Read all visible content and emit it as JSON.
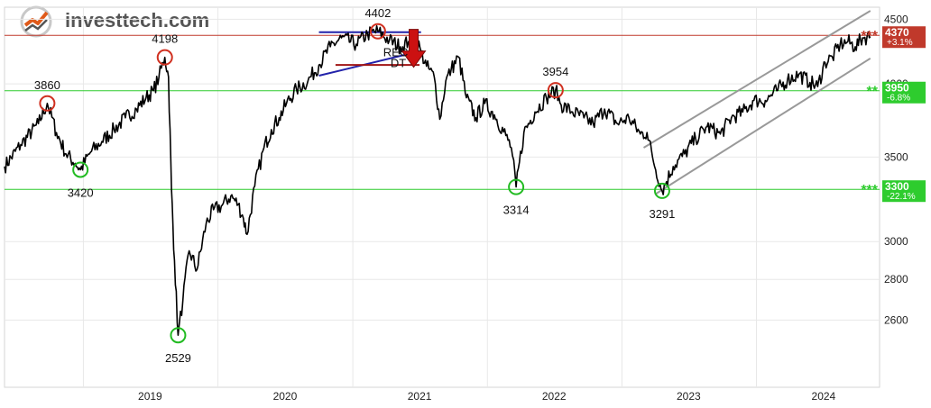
{
  "logo": {
    "brand": "investtech.com",
    "brand_prefix": "invest",
    "brand_suffix": "tech.com",
    "icon": "investtech-logo-icon"
  },
  "chart_data": {
    "type": "line",
    "title": "",
    "xlabel": "",
    "ylabel": "",
    "scale": "log",
    "ylim": [
      2300,
      4600
    ],
    "xlim": [
      "2018-06-01",
      "2024-11-30"
    ],
    "grid": true,
    "y_ticks": [
      2600,
      2800,
      3000,
      3500,
      4000,
      4500
    ],
    "x_ticks": [
      "2019",
      "2020",
      "2021",
      "2022",
      "2023",
      "2024"
    ],
    "series": [
      {
        "color": "#000000",
        "x": [
          "2018-06-01",
          "2018-07-15",
          "2018-09-01",
          "2018-09-25",
          "2018-10-20",
          "2018-11-15",
          "2018-12-10",
          "2018-12-24",
          "2019-01-20",
          "2019-02-20",
          "2019-03-25",
          "2019-04-25",
          "2019-05-25",
          "2019-06-20",
          "2019-07-10",
          "2019-07-25",
          "2019-08-10",
          "2019-08-20",
          "2019-08-28",
          "2019-09-05",
          "2019-09-15",
          "2019-09-28",
          "2019-10-15",
          "2019-11-05",
          "2019-11-30",
          "2019-12-20",
          "2020-01-10",
          "2020-02-05",
          "2020-02-25",
          "2020-03-10",
          "2020-03-20",
          "2020-04-10",
          "2020-05-05",
          "2020-05-25",
          "2020-06-15",
          "2020-07-05",
          "2020-08-01",
          "2020-09-01",
          "2020-10-01",
          "2020-11-01",
          "2020-12-01",
          "2021-01-10",
          "2021-02-10",
          "2021-03-10",
          "2021-04-10",
          "2021-05-10",
          "2021-06-01",
          "2021-06-20",
          "2021-07-05",
          "2021-07-20",
          "2021-08-10",
          "2021-08-25",
          "2021-09-10",
          "2021-09-25",
          "2021-10-15",
          "2021-11-05",
          "2021-12-01",
          "2021-12-25",
          "2022-01-20",
          "2022-02-20",
          "2022-03-07",
          "2022-03-20",
          "2022-04-10",
          "2022-05-10",
          "2022-06-10",
          "2022-07-05",
          "2022-07-20",
          "2022-08-20",
          "2022-09-20",
          "2022-10-15",
          "2022-11-15",
          "2022-12-20",
          "2023-01-20",
          "2023-02-20",
          "2023-03-10",
          "2023-03-25",
          "2023-04-20",
          "2023-05-20",
          "2023-06-20",
          "2023-07-20",
          "2023-08-20",
          "2023-09-25",
          "2023-10-25",
          "2023-11-25",
          "2023-12-25",
          "2024-01-25",
          "2024-02-25",
          "2024-03-25",
          "2024-04-25",
          "2024-05-25",
          "2024-06-15",
          "2024-07-05",
          "2024-07-25",
          "2024-08-15",
          "2024-09-05",
          "2024-09-25",
          "2024-10-15",
          "2024-11-05"
        ],
        "values": [
          3440,
          3580,
          3720,
          3860,
          3660,
          3520,
          3460,
          3420,
          3530,
          3600,
          3680,
          3760,
          3820,
          3900,
          3950,
          4050,
          4198,
          4050,
          3300,
          2900,
          2529,
          2700,
          2950,
          2850,
          3100,
          3180,
          3200,
          3260,
          3210,
          3130,
          3040,
          3320,
          3560,
          3680,
          3760,
          3860,
          3960,
          4020,
          4140,
          4280,
          4350,
          4300,
          4380,
          4402,
          4330,
          4280,
          4320,
          4360,
          4240,
          4130,
          4050,
          3750,
          4020,
          4110,
          4200,
          3900,
          3760,
          3860,
          3780,
          3640,
          3560,
          3314,
          3660,
          3800,
          3900,
          3954,
          3850,
          3800,
          3760,
          3720,
          3820,
          3720,
          3760,
          3650,
          3660,
          3500,
          3291,
          3440,
          3520,
          3620,
          3700,
          3650,
          3760,
          3800,
          3880,
          3880,
          3950,
          4030,
          4070,
          4010,
          3980,
          4160,
          4200,
          4300,
          4320,
          4280,
          4350,
          4360
        ]
      }
    ],
    "horizontal_levels": [
      {
        "value": 4370,
        "label": "4370",
        "pct": "+3.1%",
        "stars": "***",
        "color": "#c0392b"
      },
      {
        "value": 3950,
        "label": "3950",
        "pct": "-6.8%",
        "stars": "**",
        "color": "#2ecc2e"
      },
      {
        "value": 3300,
        "label": "3300",
        "pct": "-22.1%",
        "stars": "***",
        "color": "#2ecc2e"
      }
    ],
    "annotations": [
      {
        "text": "3860",
        "x": "2018-09-25",
        "y": 3860,
        "kind": "top"
      },
      {
        "text": "3420",
        "x": "2018-12-24",
        "y": 3420,
        "kind": "bottom"
      },
      {
        "text": "4198",
        "x": "2019-08-10",
        "y": 4198,
        "kind": "top"
      },
      {
        "text": "2529",
        "x": "2019-09-15",
        "y": 2529,
        "kind": "bottom"
      },
      {
        "text": "4402",
        "x": "2021-03-10",
        "y": 4402,
        "kind": "top"
      },
      {
        "text": "3314",
        "x": "2022-03-20",
        "y": 3314,
        "kind": "bottom"
      },
      {
        "text": "3954",
        "x": "2022-07-05",
        "y": 3954,
        "kind": "top"
      },
      {
        "text": "3291",
        "x": "2023-04-20",
        "y": 3291,
        "kind": "bottom"
      }
    ],
    "signal": {
      "line1": "REC",
      "line2": "DT",
      "x": "2021-06-15",
      "y": 4150,
      "direction": "down",
      "color": "#cc1111"
    },
    "trend_channel": {
      "color": "#999999",
      "upper": [
        [
          "2023-03-01",
          3560
        ],
        [
          "2024-11-05",
          4570
        ]
      ],
      "lower": [
        [
          "2023-04-01",
          3270
        ],
        [
          "2024-11-05",
          4190
        ]
      ]
    },
    "pattern_lines": {
      "resistance": {
        "color": "#2222aa",
        "from": [
          "2020-10-01",
          4395
        ],
        "to": [
          "2021-07-05",
          4395
        ]
      },
      "neck": {
        "color": "#2222aa",
        "from": [
          "2020-10-01",
          4060
        ],
        "to": [
          "2021-07-01",
          4245
        ]
      },
      "break": {
        "color": "#a01515",
        "from": [
          "2020-11-15",
          4140
        ],
        "to": [
          "2021-07-01",
          4140
        ]
      }
    }
  }
}
